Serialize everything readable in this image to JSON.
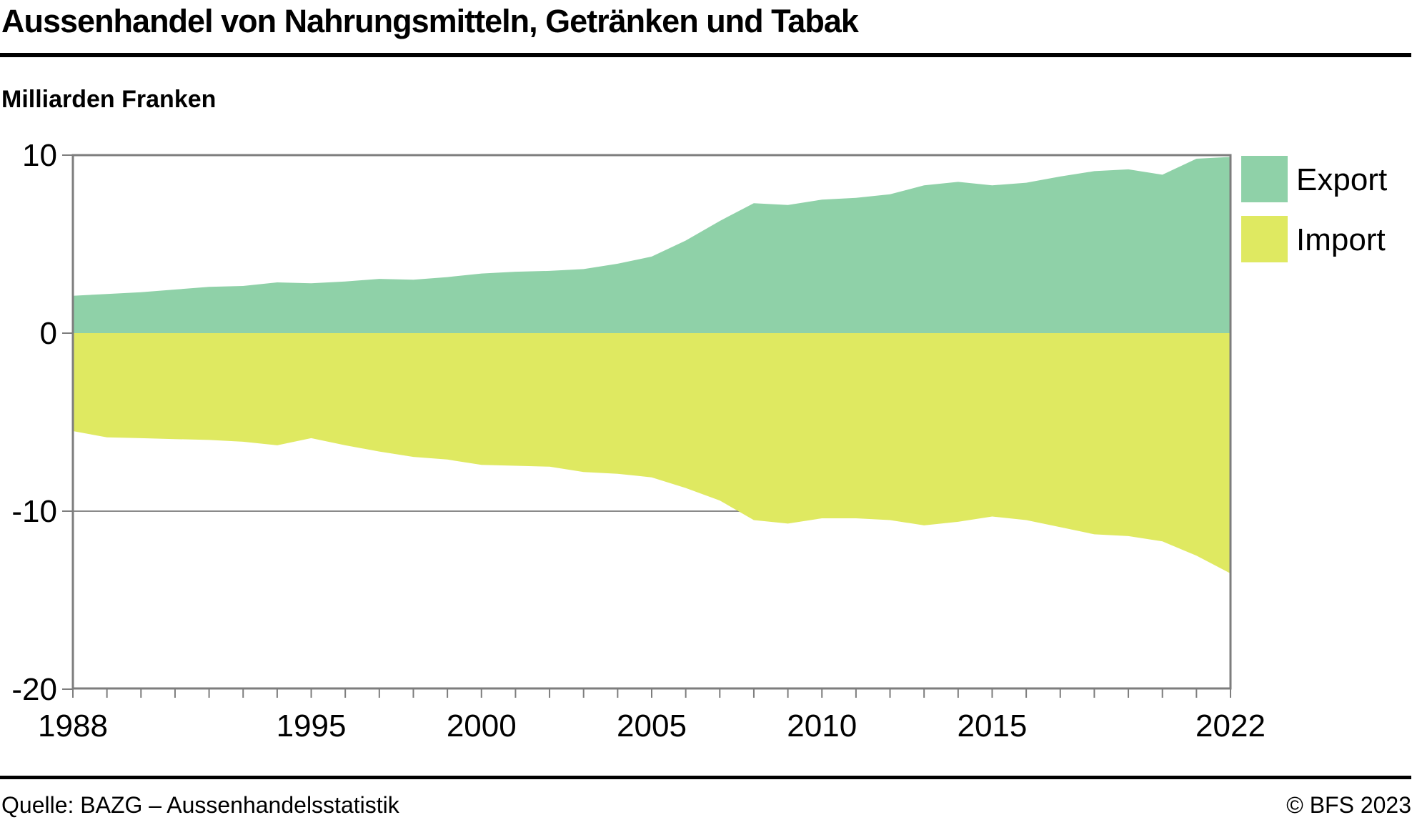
{
  "chart_data": {
    "type": "area",
    "title": "Aussenhandel von Nahrungsmitteln, Getränken und Tabak",
    "ylabel": "Milliarden Franken",
    "xlabel": "",
    "years": [
      1988,
      1989,
      1990,
      1991,
      1992,
      1993,
      1994,
      1995,
      1996,
      1997,
      1998,
      1999,
      2000,
      2001,
      2002,
      2003,
      2004,
      2005,
      2006,
      2007,
      2008,
      2009,
      2010,
      2011,
      2012,
      2013,
      2014,
      2015,
      2016,
      2017,
      2018,
      2019,
      2020,
      2021,
      2022
    ],
    "series": [
      {
        "name": "Export",
        "color": "#8fd1a8",
        "values": [
          2.1,
          2.2,
          2.3,
          2.45,
          2.6,
          2.65,
          2.85,
          2.8,
          2.9,
          3.05,
          3.0,
          3.15,
          3.35,
          3.45,
          3.5,
          3.6,
          3.9,
          4.3,
          5.2,
          6.3,
          7.3,
          7.2,
          7.5,
          7.6,
          7.8,
          8.3,
          8.5,
          8.3,
          8.45,
          8.8,
          9.1,
          9.2,
          8.9,
          9.8,
          9.9
        ]
      },
      {
        "name": "Import",
        "color": "#dfe961",
        "values": [
          -5.5,
          -5.85,
          -5.9,
          -5.95,
          -6.0,
          -6.1,
          -6.3,
          -5.9,
          -6.3,
          -6.65,
          -6.95,
          -7.1,
          -7.4,
          -7.45,
          -7.5,
          -7.8,
          -7.9,
          -8.1,
          -8.7,
          -9.4,
          -10.5,
          -10.7,
          -10.4,
          -10.4,
          -10.5,
          -10.8,
          -10.6,
          -10.3,
          -10.5,
          -10.9,
          -11.3,
          -11.4,
          -11.7,
          -12.5,
          -13.5
        ]
      }
    ],
    "baseline": 0,
    "ylim": [
      -20,
      10
    ],
    "yticks": [
      10,
      0,
      -10,
      -20
    ],
    "xticks": [
      1988,
      1995,
      2000,
      2005,
      2010,
      2015,
      2022
    ],
    "gridlines": [
      -10
    ],
    "grid": "horizontal line at -10 only",
    "legend_position": "right"
  },
  "footer": {
    "source": "Quelle: BAZG – Aussenhandelsstatistik",
    "copyright": "© BFS 2023"
  }
}
